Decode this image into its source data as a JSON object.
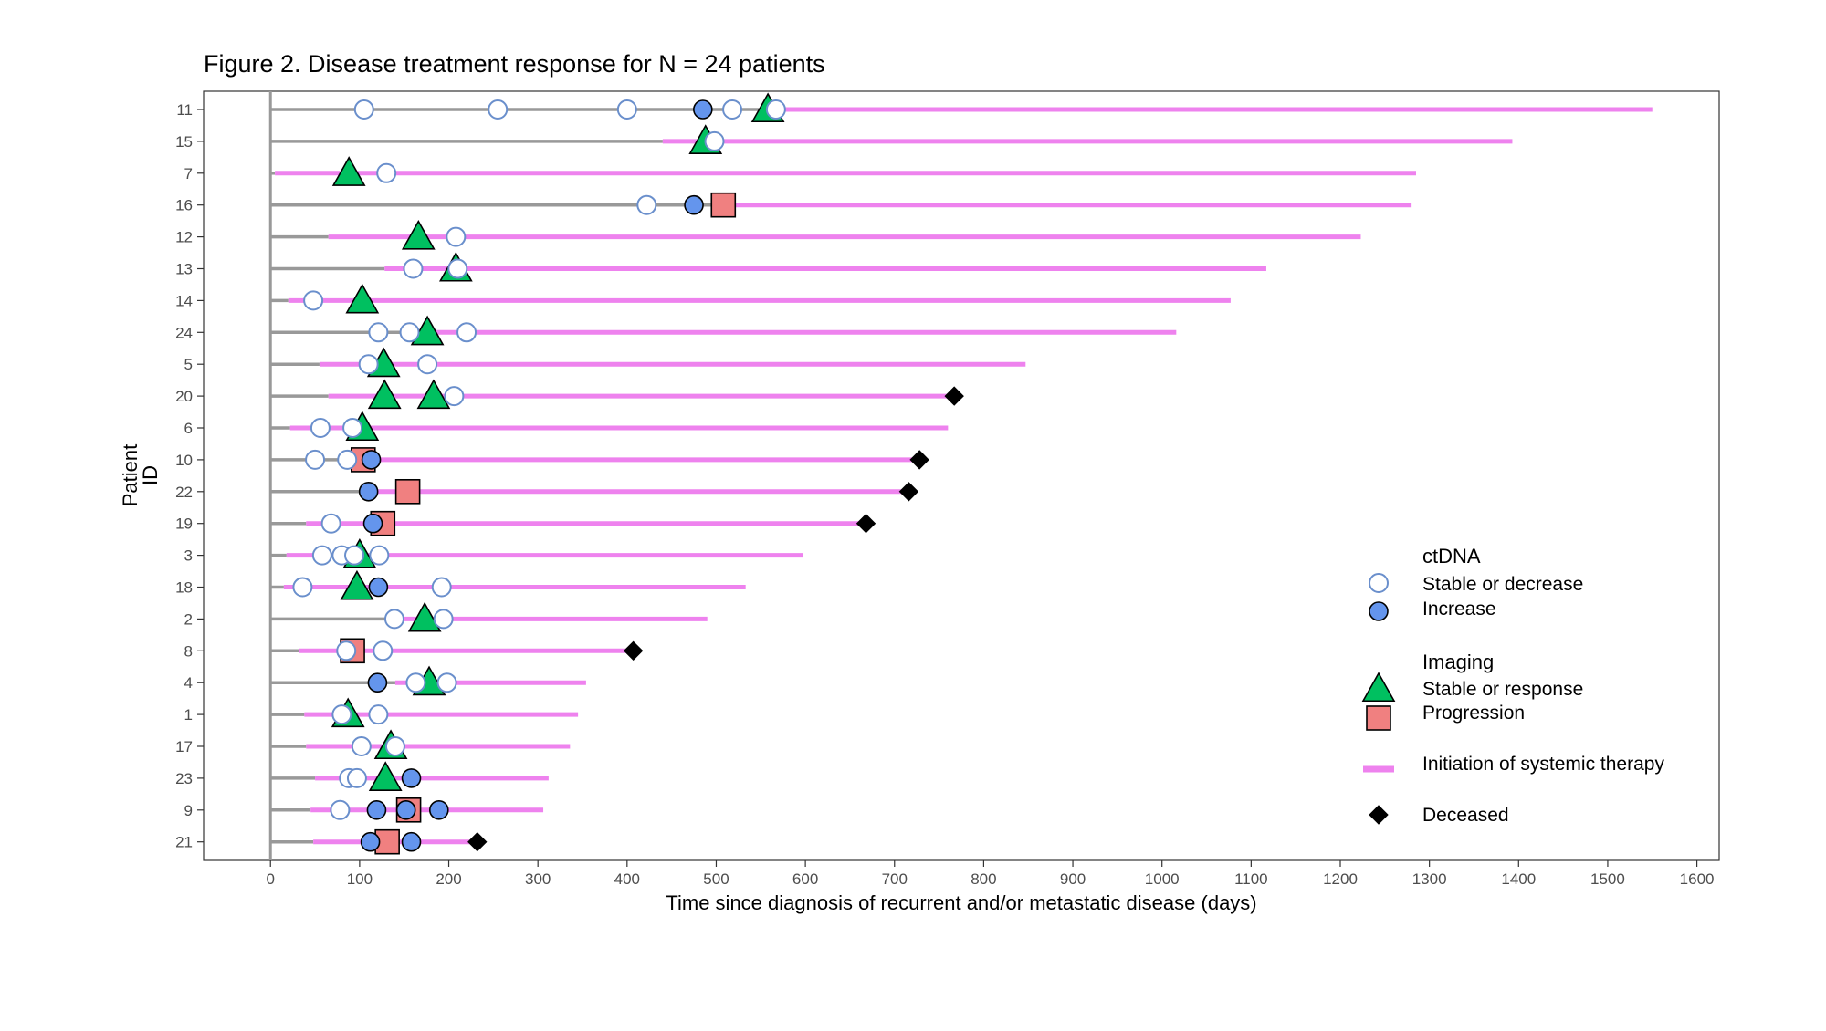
{
  "chart_data": {
    "type": "scatter",
    "title": "Figure 2. Disease treatment response for N = 24 patients",
    "xlabel": "Time since diagnosis of recurrent and/or metastatic disease (days)",
    "ylabel": "Patient\nID",
    "xlim": [
      -75,
      1625
    ],
    "xticks": [
      0,
      100,
      200,
      300,
      400,
      500,
      600,
      700,
      800,
      900,
      1000,
      1100,
      1200,
      1300,
      1400,
      1500,
      1600
    ],
    "grid": false,
    "legend_position": "right",
    "legend": {
      "ctdna_title": "ctDNA",
      "ctdna_stable": "Stable or decrease",
      "ctdna_increase": "Increase",
      "imaging_title": "Imaging",
      "imaging_stable": "Stable or response",
      "imaging_progression": "Progression",
      "therapy": "Initiation of systemic therapy",
      "deceased": "Deceased"
    },
    "colors": {
      "follow_up_line": "#999999",
      "therapy_line": "#EE82EE",
      "ctdna_stable_stroke": "#6A8FCC",
      "ctdna_increase_fill": "#6495ED",
      "imaging_stable_fill": "#00C060",
      "imaging_progression_fill": "#F08080",
      "deceased_fill": "#000000"
    },
    "patients": [
      {
        "id": "11",
        "end": 1550,
        "therapy_start": 565,
        "deceased": null,
        "ctdna_stable": [
          105,
          255,
          400,
          518,
          567
        ],
        "ctdna_increase": [
          485
        ],
        "imaging_stable": [
          558
        ],
        "imaging_progression": []
      },
      {
        "id": "15",
        "end": 1393,
        "therapy_start": 440,
        "deceased": null,
        "ctdna_stable": [
          498
        ],
        "ctdna_increase": [],
        "imaging_stable": [
          488
        ],
        "imaging_progression": []
      },
      {
        "id": "7",
        "end": 1285,
        "therapy_start": 5,
        "deceased": null,
        "ctdna_stable": [
          130
        ],
        "ctdna_increase": [],
        "imaging_stable": [
          88
        ],
        "imaging_progression": []
      },
      {
        "id": "16",
        "end": 1280,
        "therapy_start": 500,
        "deceased": null,
        "ctdna_stable": [
          422
        ],
        "ctdna_increase": [
          475
        ],
        "imaging_stable": [],
        "imaging_progression": [
          508
        ]
      },
      {
        "id": "12",
        "end": 1223,
        "therapy_start": 65,
        "deceased": null,
        "ctdna_stable": [
          208
        ],
        "ctdna_increase": [],
        "imaging_stable": [
          166
        ],
        "imaging_progression": []
      },
      {
        "id": "13",
        "end": 1117,
        "therapy_start": 128,
        "deceased": null,
        "ctdna_stable": [
          160,
          210
        ],
        "ctdna_increase": [],
        "imaging_stable": [
          208
        ],
        "imaging_progression": []
      },
      {
        "id": "14",
        "end": 1077,
        "therapy_start": 20,
        "deceased": null,
        "ctdna_stable": [
          48
        ],
        "ctdna_increase": [],
        "imaging_stable": [
          103
        ],
        "imaging_progression": []
      },
      {
        "id": "24",
        "end": 1016,
        "therapy_start": 148,
        "deceased": null,
        "ctdna_stable": [
          121,
          156,
          220
        ],
        "ctdna_increase": [],
        "imaging_stable": [
          176
        ],
        "imaging_progression": []
      },
      {
        "id": "5",
        "end": 847,
        "therapy_start": 55,
        "deceased": null,
        "ctdna_stable": [
          110,
          176
        ],
        "ctdna_increase": [],
        "imaging_stable": [
          127
        ],
        "imaging_progression": []
      },
      {
        "id": "20",
        "end": 767,
        "therapy_start": 65,
        "deceased": 767,
        "ctdna_stable": [
          206
        ],
        "ctdna_increase": [],
        "imaging_stable": [
          128,
          183
        ],
        "imaging_progression": []
      },
      {
        "id": "6",
        "end": 760,
        "therapy_start": 22,
        "deceased": null,
        "ctdna_stable": [
          56,
          92
        ],
        "ctdna_increase": [],
        "imaging_stable": [
          103
        ],
        "imaging_progression": []
      },
      {
        "id": "10",
        "end": 728,
        "therapy_start": 95,
        "deceased": 728,
        "ctdna_stable": [
          50,
          86
        ],
        "ctdna_increase": [
          113
        ],
        "imaging_stable": [],
        "imaging_progression": [
          104
        ]
      },
      {
        "id": "22",
        "end": 716,
        "therapy_start": 100,
        "deceased": 716,
        "ctdna_stable": [],
        "ctdna_increase": [
          110
        ],
        "imaging_stable": [],
        "imaging_progression": [
          154
        ]
      },
      {
        "id": "19",
        "end": 668,
        "therapy_start": 40,
        "deceased": 668,
        "ctdna_stable": [
          68
        ],
        "ctdna_increase": [
          115
        ],
        "imaging_stable": [],
        "imaging_progression": [
          126
        ]
      },
      {
        "id": "3",
        "end": 597,
        "therapy_start": 18,
        "deceased": null,
        "ctdna_stable": [
          58,
          80,
          94,
          122
        ],
        "ctdna_increase": [],
        "imaging_stable": [
          100
        ],
        "imaging_progression": []
      },
      {
        "id": "18",
        "end": 533,
        "therapy_start": 15,
        "deceased": null,
        "ctdna_stable": [
          36,
          192
        ],
        "ctdna_increase": [
          121
        ],
        "imaging_stable": [
          97
        ],
        "imaging_progression": []
      },
      {
        "id": "2",
        "end": 490,
        "therapy_start": 150,
        "deceased": null,
        "ctdna_stable": [
          139,
          194
        ],
        "ctdna_increase": [],
        "imaging_stable": [
          173
        ],
        "imaging_progression": []
      },
      {
        "id": "8",
        "end": 407,
        "therapy_start": 32,
        "deceased": 407,
        "ctdna_stable": [
          85,
          126
        ],
        "ctdna_increase": [],
        "imaging_stable": [],
        "imaging_progression": [
          92
        ]
      },
      {
        "id": "4",
        "end": 354,
        "therapy_start": 140,
        "deceased": null,
        "ctdna_stable": [
          163,
          198
        ],
        "ctdna_increase": [
          120
        ],
        "imaging_stable": [
          178
        ],
        "imaging_progression": []
      },
      {
        "id": "1",
        "end": 345,
        "therapy_start": 38,
        "deceased": null,
        "ctdna_stable": [
          80,
          121
        ],
        "ctdna_increase": [],
        "imaging_stable": [
          87
        ],
        "imaging_progression": []
      },
      {
        "id": "17",
        "end": 336,
        "therapy_start": 40,
        "deceased": null,
        "ctdna_stable": [
          102,
          140
        ],
        "ctdna_increase": [],
        "imaging_stable": [
          135
        ],
        "imaging_progression": []
      },
      {
        "id": "23",
        "end": 312,
        "therapy_start": 50,
        "deceased": null,
        "ctdna_stable": [
          88,
          97
        ],
        "ctdna_increase": [
          158
        ],
        "imaging_stable": [
          129
        ],
        "imaging_progression": []
      },
      {
        "id": "9",
        "end": 306,
        "therapy_start": 45,
        "deceased": null,
        "ctdna_stable": [
          78
        ],
        "ctdna_increase": [
          119,
          152,
          189
        ],
        "imaging_stable": [],
        "imaging_progression": [
          155
        ]
      },
      {
        "id": "21",
        "end": 232,
        "therapy_start": 48,
        "deceased": 232,
        "ctdna_stable": [],
        "ctdna_increase": [
          112,
          158
        ],
        "imaging_stable": [],
        "imaging_progression": [
          131
        ]
      }
    ]
  }
}
